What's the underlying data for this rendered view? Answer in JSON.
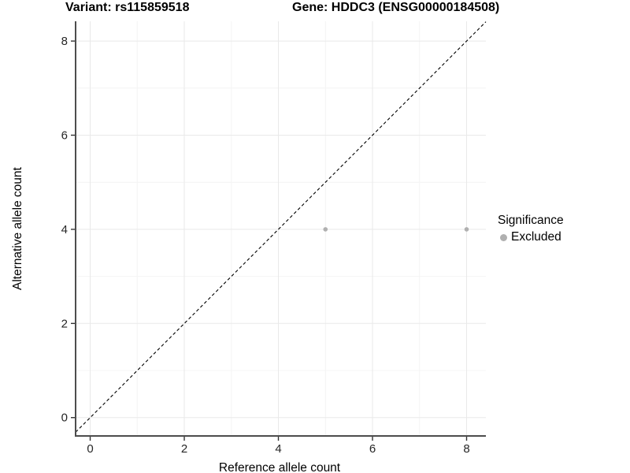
{
  "chart_data": {
    "type": "scatter",
    "title_left": "Variant: rs115859518",
    "title_right": "Gene: HDDC3 (ENSG00000184508)",
    "xlabel": "Reference allele count",
    "ylabel": "Alternative allele count",
    "xticks": [
      0,
      2,
      4,
      6,
      8
    ],
    "yticks": [
      0,
      2,
      4,
      6,
      8
    ],
    "xlim": [
      -0.31,
      8.41
    ],
    "ylim": [
      -0.39,
      8.42
    ],
    "grid": "major+minor",
    "identity_line": {
      "type": "y=x",
      "style": "dashed"
    },
    "series": [
      {
        "name": "Excluded",
        "points": [
          [
            5,
            4
          ],
          [
            8,
            4
          ]
        ]
      }
    ],
    "legend": {
      "title": "Significance",
      "position": "right",
      "items": [
        {
          "label": "Excluded"
        }
      ]
    }
  },
  "style_colors": {
    "background": "#ffffff",
    "grid_major": "#e9e9e9",
    "grid_minor": "#f4f4f4",
    "axis_line": "#4d4d4d",
    "tick_mark": "#333333",
    "tick_label": "#262626",
    "identity_line": "#000000",
    "point": "#b0b0b0",
    "text": "#000000"
  }
}
